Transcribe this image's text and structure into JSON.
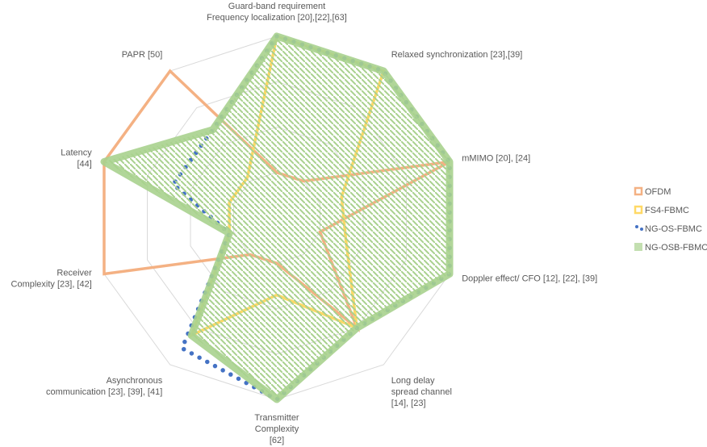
{
  "chart_data": {
    "type": "radar",
    "axes": [
      {
        "label": [
          "Guard-band requirement",
          "Frequency localization [20],[22],[63]"
        ]
      },
      {
        "label": [
          "Relaxed synchronization [23],[39]"
        ]
      },
      {
        "label": [
          "mMIMO [20], [24]"
        ]
      },
      {
        "label": [
          "Doppler effect/ CFO [12], [22], [39]"
        ]
      },
      {
        "label": [
          "Long delay",
          "spread channel",
          "[14], [23]"
        ]
      },
      {
        "label": [
          "Transmitter",
          "Complexity",
          "[62]"
        ]
      },
      {
        "label": [
          "Asynchronous",
          "communication [23], [39], [41]"
        ]
      },
      {
        "label": [
          "Receiver",
          "Complexity [23], [42]"
        ]
      },
      {
        "label": [
          "Latency",
          "[44]"
        ]
      },
      {
        "label": [
          "PAPR [50]"
        ]
      }
    ],
    "rmax": 4,
    "rings": 4,
    "series": [
      {
        "name": "OFDM",
        "color": "#F4B183",
        "values": [
          1,
          1,
          4,
          1,
          3,
          1,
          1,
          4,
          4,
          4
        ]
      },
      {
        "name": "FS4-FBMC",
        "color": "#FFD966",
        "values": [
          4,
          4,
          1.5,
          1.6,
          3,
          1.7,
          3.2,
          1.1,
          1.1,
          1.1
        ]
      },
      {
        "name": "NG-OS-FBMC",
        "color": "#4472C4",
        "values": [
          4,
          4,
          4,
          4,
          3,
          4,
          3.55,
          1.1,
          2.4,
          2.4
        ]
      },
      {
        "name": "NG-OSB-FBMC",
        "color": "#A9D18E",
        "values": [
          4,
          4,
          4,
          4,
          3,
          4,
          3.2,
          1.1,
          4,
          2.4
        ]
      }
    ]
  }
}
